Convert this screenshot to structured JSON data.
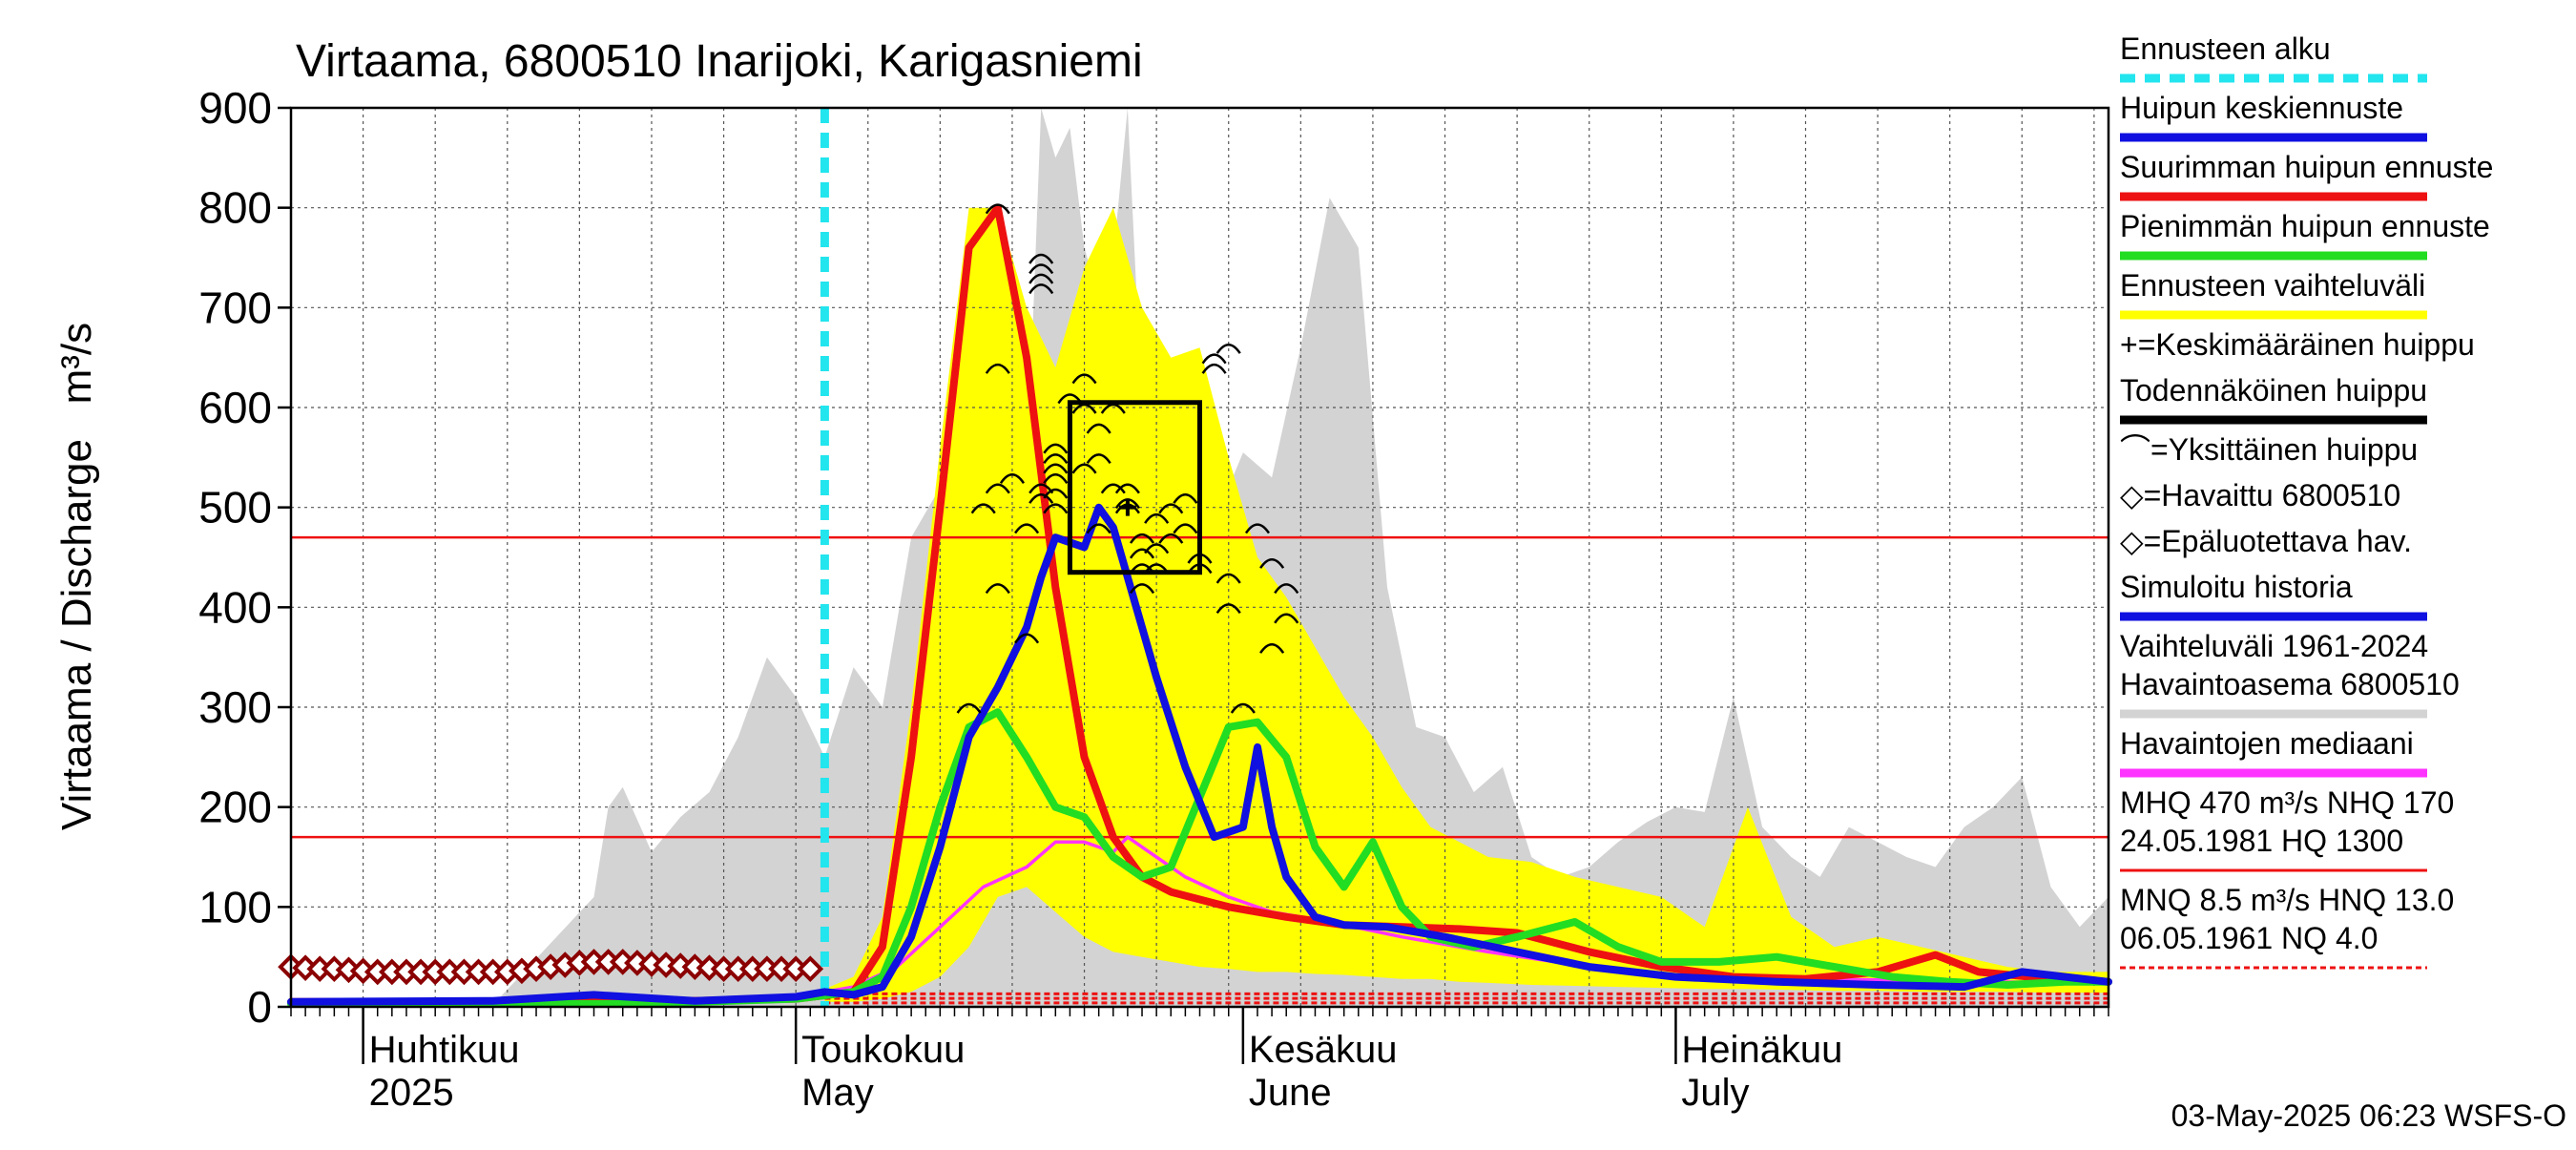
{
  "chart_data": {
    "type": "line",
    "title": "Virtaama, 6800510 Inarijoki, Karigasniemi",
    "ylabel": "Virtaama / Discharge   m³/s",
    "ylim": [
      0,
      900
    ],
    "yticks": [
      0,
      100,
      200,
      300,
      400,
      500,
      600,
      700,
      800,
      900
    ],
    "x_range": [
      "2025-03-27",
      "2025-07-31"
    ],
    "month_labels": [
      {
        "date": "2025-04-01",
        "fi": "Huhtikuu",
        "en": "2025"
      },
      {
        "date": "2025-05-01",
        "fi": "Toukokuu",
        "en": "May"
      },
      {
        "date": "2025-06-01",
        "fi": "Kesäkuu",
        "en": "June"
      },
      {
        "date": "2025-07-01",
        "fi": "Heinäkuu",
        "en": "July"
      }
    ],
    "grid": true,
    "footer": "03-May-2025 06:23 WSFS-O",
    "forecast_start": "2025-05-03",
    "reference_lines": {
      "MHQ": 470,
      "NHQ": 170,
      "MNQ": 8.5,
      "HNQ": 13.0,
      "NQ": 4.0
    },
    "probable_peak_box": {
      "x0": "2025-05-20",
      "x1": "2025-05-29",
      "y0": 435,
      "y1": 605
    },
    "mean_peak": {
      "x": "2025-05-24",
      "y": 500
    },
    "legend": [
      {
        "label": "Ennusteen alku",
        "color": "#22e5ee",
        "style": "dashed"
      },
      {
        "label": "Huipun keskiennuste",
        "color": "#1010e0",
        "style": "solid"
      },
      {
        "label": "Suurimman huipun ennuste",
        "color": "#ee1111",
        "style": "solid"
      },
      {
        "label": "Pienimmän huipun ennuste",
        "color": "#22dd22",
        "style": "solid"
      },
      {
        "label": "Ennusteen vaihteluväli",
        "color": "#ffff00",
        "style": "solid"
      },
      {
        "label": "+=Keskimääräinen huippu",
        "color": "#000000",
        "style": "symbol"
      },
      {
        "label": "Todennäköinen huippu",
        "color": "#000000",
        "style": "solid"
      },
      {
        "label": "⌒=Yksittäinen huippu",
        "color": "#000000",
        "style": "symbol"
      },
      {
        "label": "◇=Havaittu 6800510",
        "color": "#000000",
        "style": "symbol"
      },
      {
        "label": "◇=Epäluotettava hav.",
        "color": "#8b0000",
        "style": "symbol"
      },
      {
        "label": "Simuloitu historia",
        "color": "#1010e0",
        "style": "solid"
      },
      {
        "label": "Vaihteluväli 1961-2024\n Havaintoasema 6800510",
        "color": "#d3d3d3",
        "style": "solid"
      },
      {
        "label": "Havaintojen mediaani",
        "color": "#ff33ff",
        "style": "solid"
      },
      {
        "label": "MHQ  470 m³/s NHQ  170\n24.05.1981 HQ 1300",
        "color": "#ee1111",
        "style": "solid"
      },
      {
        "label": "MNQ  8.5 m³/s HNQ 13.0\n06.05.1961 NQ  4.0",
        "color": "#ee1111",
        "style": "dashed"
      }
    ],
    "series": [
      {
        "name": "Vaihteluväli 1961-2024",
        "kind": "band",
        "color": "#d3d3d3",
        "x": [
          "2025-03-27",
          "2025-04-10",
          "2025-04-17",
          "2025-04-18",
          "2025-04-19",
          "2025-04-21",
          "2025-04-23",
          "2025-04-25",
          "2025-04-27",
          "2025-04-29",
          "2025-05-01",
          "2025-05-03",
          "2025-05-05",
          "2025-05-07",
          "2025-05-09",
          "2025-05-11",
          "2025-05-13",
          "2025-05-15",
          "2025-05-17",
          "2025-05-18",
          "2025-05-19",
          "2025-05-20",
          "2025-05-21",
          "2025-05-22",
          "2025-05-23",
          "2025-05-24",
          "2025-05-25",
          "2025-05-27",
          "2025-05-29",
          "2025-05-31",
          "2025-06-01",
          "2025-06-03",
          "2025-06-05",
          "2025-06-07",
          "2025-06-09",
          "2025-06-11",
          "2025-06-13",
          "2025-06-15",
          "2025-06-17",
          "2025-06-19",
          "2025-06-21",
          "2025-06-23",
          "2025-06-25",
          "2025-06-27",
          "2025-06-29",
          "2025-07-01",
          "2025-07-03",
          "2025-07-05",
          "2025-07-07",
          "2025-07-09",
          "2025-07-11",
          "2025-07-13",
          "2025-07-15",
          "2025-07-17",
          "2025-07-19",
          "2025-07-21",
          "2025-07-23",
          "2025-07-25",
          "2025-07-27",
          "2025-07-29",
          "2025-07-31"
        ],
        "upper": [
          2,
          2,
          110,
          200,
          220,
          155,
          190,
          215,
          270,
          350,
          310,
          250,
          340,
          300,
          470,
          520,
          560,
          530,
          520,
          900,
          850,
          880,
          760,
          710,
          750,
          900,
          600,
          540,
          545,
          520,
          555,
          530,
          660,
          810,
          760,
          420,
          280,
          270,
          215,
          240,
          150,
          130,
          140,
          165,
          185,
          200,
          195,
          310,
          180,
          150,
          130,
          180,
          165,
          150,
          140,
          180,
          200,
          230,
          120,
          80,
          110
        ],
        "lower": [
          0,
          0,
          0,
          0,
          0,
          0,
          0,
          0,
          0,
          0,
          0,
          0,
          0,
          0,
          0,
          0,
          0,
          0,
          0,
          0,
          0,
          0,
          0,
          0,
          0,
          0,
          0,
          0,
          0,
          0,
          0,
          0,
          0,
          0,
          0,
          0,
          0,
          0,
          0,
          0,
          0,
          0,
          0,
          0,
          0,
          0,
          0,
          0,
          0,
          0,
          0,
          0,
          0,
          0,
          0,
          0,
          0,
          0,
          0,
          0,
          0
        ]
      },
      {
        "name": "Ennusteen vaihteluväli",
        "kind": "band",
        "color": "#ffff00",
        "x": [
          "2025-05-03",
          "2025-05-05",
          "2025-05-07",
          "2025-05-09",
          "2025-05-11",
          "2025-05-13",
          "2025-05-15",
          "2025-05-17",
          "2025-05-19",
          "2025-05-21",
          "2025-05-23",
          "2025-05-25",
          "2025-05-27",
          "2025-05-29",
          "2025-05-31",
          "2025-06-02",
          "2025-06-04",
          "2025-06-06",
          "2025-06-08",
          "2025-06-10",
          "2025-06-12",
          "2025-06-14",
          "2025-06-16",
          "2025-06-18",
          "2025-06-21",
          "2025-06-24",
          "2025-06-27",
          "2025-06-30",
          "2025-07-03",
          "2025-07-06",
          "2025-07-09",
          "2025-07-12",
          "2025-07-15",
          "2025-07-18",
          "2025-07-21",
          "2025-07-24",
          "2025-07-27",
          "2025-07-31"
        ],
        "upper": [
          18,
          30,
          90,
          300,
          560,
          800,
          800,
          700,
          640,
          740,
          800,
          700,
          650,
          660,
          550,
          450,
          410,
          360,
          310,
          270,
          220,
          180,
          165,
          150,
          145,
          130,
          120,
          110,
          80,
          200,
          90,
          60,
          70,
          60,
          50,
          40,
          35,
          35
        ],
        "lower": [
          5,
          5,
          8,
          15,
          30,
          60,
          110,
          120,
          95,
          70,
          55,
          50,
          45,
          40,
          38,
          35,
          35,
          33,
          32,
          30,
          28,
          28,
          25,
          24,
          22,
          21,
          20,
          19,
          18,
          18,
          17,
          16,
          16,
          15,
          15,
          15,
          14,
          14
        ]
      },
      {
        "name": "Havaintojen mediaani",
        "kind": "line",
        "color": "#ff33ff",
        "x": [
          "2025-03-27",
          "2025-04-10",
          "2025-04-20",
          "2025-04-28",
          "2025-05-01",
          "2025-05-05",
          "2025-05-08",
          "2025-05-11",
          "2025-05-14",
          "2025-05-17",
          "2025-05-19",
          "2025-05-21",
          "2025-05-23",
          "2025-05-24",
          "2025-05-26",
          "2025-05-28",
          "2025-05-31",
          "2025-06-03",
          "2025-06-07",
          "2025-06-12",
          "2025-06-18",
          "2025-06-25",
          "2025-07-01",
          "2025-07-08",
          "2025-07-15",
          "2025-07-22",
          "2025-07-31"
        ],
        "values": [
          3,
          4,
          6,
          7,
          10,
          20,
          40,
          80,
          120,
          140,
          165,
          165,
          155,
          170,
          150,
          130,
          110,
          95,
          85,
          70,
          55,
          40,
          32,
          28,
          27,
          25,
          24
        ]
      },
      {
        "name": "Suurimman huipun ennuste",
        "kind": "line",
        "color": "#ee1111",
        "x": [
          "2025-03-27",
          "2025-04-20",
          "2025-05-01",
          "2025-05-05",
          "2025-05-07",
          "2025-05-09",
          "2025-05-11",
          "2025-05-13",
          "2025-05-15",
          "2025-05-17",
          "2025-05-19",
          "2025-05-21",
          "2025-05-23",
          "2025-05-25",
          "2025-05-27",
          "2025-05-31",
          "2025-06-04",
          "2025-06-08",
          "2025-06-12",
          "2025-06-16",
          "2025-06-20",
          "2025-06-25",
          "2025-06-30",
          "2025-07-05",
          "2025-07-10",
          "2025-07-15",
          "2025-07-19",
          "2025-07-22",
          "2025-07-27",
          "2025-07-31"
        ],
        "values": [
          5,
          5,
          8,
          15,
          60,
          250,
          500,
          760,
          800,
          650,
          420,
          250,
          170,
          130,
          115,
          100,
          90,
          82,
          80,
          78,
          74,
          55,
          40,
          30,
          28,
          35,
          52,
          35,
          28,
          25
        ]
      },
      {
        "name": "Pienimmän huipun ennuste",
        "kind": "line",
        "color": "#22dd22",
        "x": [
          "2025-03-27",
          "2025-04-20",
          "2025-05-01",
          "2025-05-05",
          "2025-05-07",
          "2025-05-09",
          "2025-05-11",
          "2025-05-13",
          "2025-05-15",
          "2025-05-17",
          "2025-05-19",
          "2025-05-21",
          "2025-05-23",
          "2025-05-25",
          "2025-05-27",
          "2025-05-29",
          "2025-05-31",
          "2025-06-02",
          "2025-06-04",
          "2025-06-06",
          "2025-06-08",
          "2025-06-10",
          "2025-06-12",
          "2025-06-14",
          "2025-06-17",
          "2025-06-20",
          "2025-06-24",
          "2025-06-27",
          "2025-06-30",
          "2025-07-04",
          "2025-07-08",
          "2025-07-12",
          "2025-07-16",
          "2025-07-20",
          "2025-07-24",
          "2025-07-28",
          "2025-07-31"
        ],
        "values": [
          3,
          3,
          8,
          15,
          30,
          100,
          200,
          280,
          295,
          250,
          200,
          190,
          150,
          130,
          140,
          210,
          280,
          285,
          250,
          160,
          120,
          165,
          100,
          70,
          60,
          70,
          85,
          60,
          45,
          45,
          50,
          40,
          30,
          25,
          22,
          25,
          25
        ]
      },
      {
        "name": "Huipun keskiennuste",
        "kind": "line",
        "color": "#1010e0",
        "x": [
          "2025-03-27",
          "2025-04-10",
          "2025-04-17",
          "2025-04-24",
          "2025-05-01",
          "2025-05-03",
          "2025-05-05",
          "2025-05-07",
          "2025-05-09",
          "2025-05-11",
          "2025-05-13",
          "2025-05-15",
          "2025-05-17",
          "2025-05-18",
          "2025-05-19",
          "2025-05-20",
          "2025-05-21",
          "2025-05-22",
          "2025-05-23",
          "2025-05-24",
          "2025-05-25",
          "2025-05-26",
          "2025-05-28",
          "2025-05-30",
          "2025-06-01",
          "2025-06-02",
          "2025-06-03",
          "2025-06-04",
          "2025-06-06",
          "2025-06-08",
          "2025-06-11",
          "2025-06-15",
          "2025-06-20",
          "2025-06-25",
          "2025-07-01",
          "2025-07-08",
          "2025-07-15",
          "2025-07-21",
          "2025-07-25",
          "2025-07-31"
        ],
        "values": [
          5,
          6,
          12,
          6,
          10,
          15,
          12,
          20,
          70,
          160,
          270,
          320,
          380,
          430,
          470,
          465,
          460,
          500,
          480,
          430,
          380,
          330,
          240,
          170,
          180,
          260,
          180,
          130,
          90,
          82,
          80,
          70,
          55,
          40,
          30,
          25,
          22,
          20,
          35,
          25
        ]
      },
      {
        "name": "Havaittu 6800510",
        "kind": "markers",
        "color": "#8b0000",
        "marker": "diamond",
        "x": [
          "2025-03-27",
          "2025-03-28",
          "2025-03-29",
          "2025-03-30",
          "2025-03-31",
          "2025-04-01",
          "2025-04-02",
          "2025-04-03",
          "2025-04-04",
          "2025-04-05",
          "2025-04-06",
          "2025-04-07",
          "2025-04-08",
          "2025-04-09",
          "2025-04-10",
          "2025-04-11",
          "2025-04-12",
          "2025-04-13",
          "2025-04-14",
          "2025-04-15",
          "2025-04-16",
          "2025-04-17",
          "2025-04-18",
          "2025-04-19",
          "2025-04-20",
          "2025-04-21",
          "2025-04-22",
          "2025-04-23",
          "2025-04-24",
          "2025-04-25",
          "2025-04-26",
          "2025-04-27",
          "2025-04-28",
          "2025-04-29",
          "2025-04-30",
          "2025-05-01",
          "2025-05-02"
        ],
        "values": [
          40,
          39,
          38,
          38,
          37,
          36,
          35,
          35,
          35,
          35,
          35,
          35,
          35,
          35,
          35,
          35,
          36,
          38,
          40,
          42,
          44,
          45,
          45,
          45,
          44,
          43,
          42,
          41,
          40,
          39,
          38,
          38,
          38,
          38,
          38,
          38,
          38
        ]
      },
      {
        "name": "Yksittäinen huippu",
        "kind": "markers",
        "color": "#000000",
        "marker": "arc",
        "x": [
          "2025-05-15",
          "2025-05-15",
          "2025-05-15",
          "2025-05-14",
          "2025-05-16",
          "2025-05-15",
          "2025-05-13",
          "2025-05-18",
          "2025-05-18",
          "2025-05-18",
          "2025-05-18",
          "2025-05-19",
          "2025-05-19",
          "2025-05-19",
          "2025-05-19",
          "2025-05-18",
          "2025-05-19",
          "2025-05-18",
          "2025-05-19",
          "2025-05-17",
          "2025-05-17",
          "2025-05-20",
          "2025-05-21",
          "2025-05-21",
          "2025-05-21",
          "2025-05-22",
          "2025-05-23",
          "2025-05-22",
          "2025-05-23",
          "2025-05-24",
          "2025-05-22",
          "2025-05-24",
          "2025-05-24",
          "2025-05-25",
          "2025-05-25",
          "2025-05-25",
          "2025-05-25",
          "2025-05-26",
          "2025-05-26",
          "2025-05-27",
          "2025-05-26",
          "2025-05-27",
          "2025-05-28",
          "2025-05-28",
          "2025-05-29",
          "2025-05-29",
          "2025-05-30",
          "2025-05-30",
          "2025-05-31",
          "2025-05-31",
          "2025-05-31",
          "2025-06-02",
          "2025-06-03",
          "2025-06-04",
          "2025-06-04",
          "2025-06-01",
          "2025-06-03"
        ],
        "values": [
          800,
          640,
          520,
          500,
          530,
          420,
          300,
          750,
          740,
          730,
          720,
          560,
          550,
          540,
          530,
          520,
          515,
          510,
          500,
          480,
          370,
          610,
          630,
          600,
          540,
          580,
          600,
          550,
          520,
          505,
          480,
          520,
          500,
          470,
          455,
          440,
          420,
          440,
          460,
          470,
          490,
          500,
          510,
          480,
          450,
          440,
          640,
          650,
          430,
          400,
          660,
          480,
          445,
          420,
          390,
          300,
          360
        ]
      }
    ]
  }
}
